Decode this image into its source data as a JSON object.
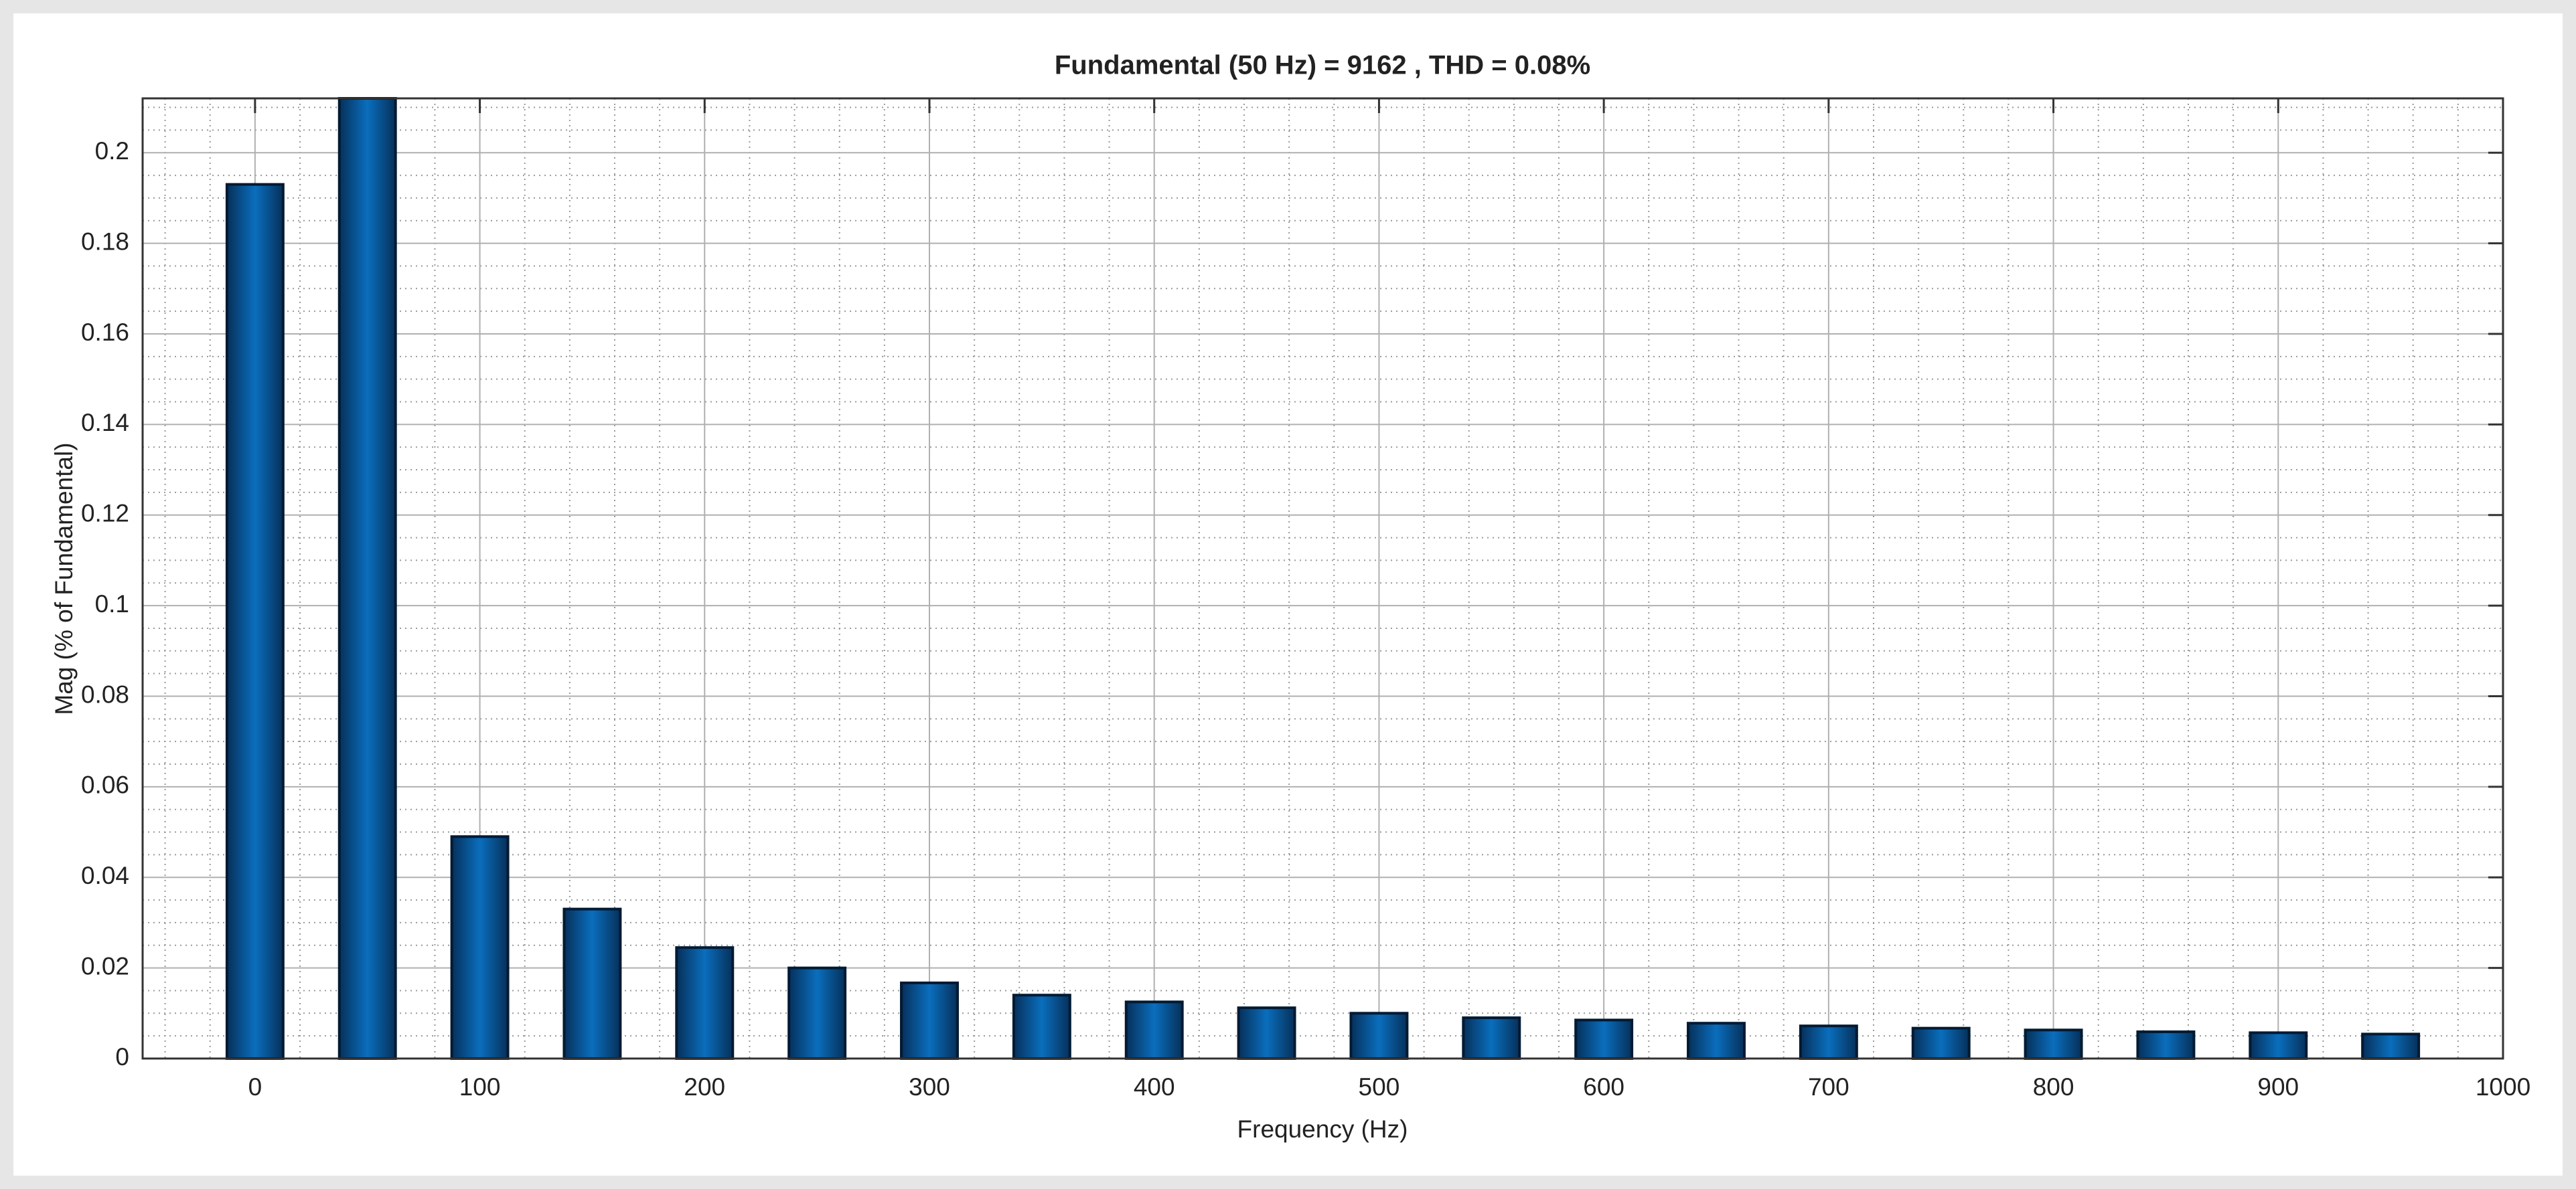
{
  "chart_data": {
    "type": "bar",
    "title": "Fundamental (50 Hz) = 9162 , THD = 0.08%",
    "xlabel": "Frequency (Hz)",
    "ylabel": "Mag (% of Fundamental)",
    "x": [
      0,
      50,
      100,
      150,
      200,
      250,
      300,
      350,
      400,
      450,
      500,
      550,
      600,
      650,
      700,
      750,
      800,
      850,
      900,
      950
    ],
    "values": [
      0.193,
      0.212,
      0.049,
      0.033,
      0.0245,
      0.02,
      0.0167,
      0.014,
      0.0125,
      0.0112,
      0.01,
      0.009,
      0.0085,
      0.0078,
      0.0072,
      0.0067,
      0.0063,
      0.0059,
      0.0057,
      0.0054
    ],
    "color": "#0a6ebd",
    "xlim": [
      -50,
      1000
    ],
    "ylim": [
      0,
      0.212
    ],
    "xticks": [
      0,
      100,
      200,
      300,
      400,
      500,
      600,
      700,
      800,
      900,
      1000
    ],
    "yticks": [
      0,
      0.02,
      0.04,
      0.06,
      0.08,
      0.1,
      0.12,
      0.14,
      0.16,
      0.18,
      0.2
    ],
    "grid": true
  }
}
